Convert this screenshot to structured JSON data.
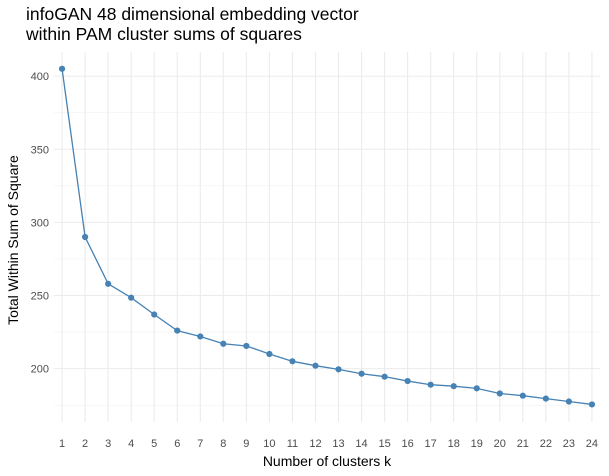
{
  "chart_data": {
    "type": "line",
    "title_lines": [
      "infoGAN 48 dimensional embedding vector",
      "within PAM cluster sums of squares"
    ],
    "xlabel": "Number of clusters k",
    "ylabel": "Total Within Sum of Square",
    "x": [
      1,
      2,
      3,
      4,
      5,
      6,
      7,
      8,
      9,
      10,
      11,
      12,
      13,
      14,
      15,
      16,
      17,
      18,
      19,
      20,
      21,
      22,
      23,
      24
    ],
    "y": [
      405,
      290,
      258,
      248.5,
      237,
      226,
      222,
      217,
      215.5,
      210,
      205,
      202,
      199.5,
      196.5,
      194.5,
      191.5,
      189,
      188,
      186.5,
      183,
      181.5,
      179.5,
      177.5,
      175.5
    ],
    "yticks": [
      200,
      250,
      300,
      350,
      400
    ],
    "xlim": [
      0.65,
      24.35
    ],
    "ylim": [
      163.5,
      416.5
    ],
    "grid": true,
    "series_color": "#4682b4"
  }
}
